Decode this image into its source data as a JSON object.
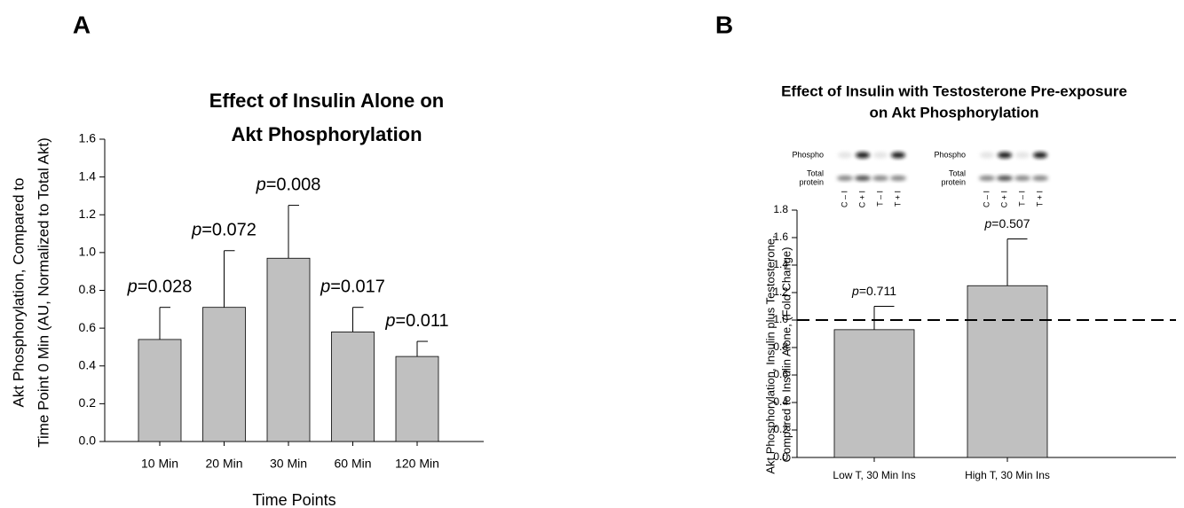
{
  "chart_data": [
    {
      "type": "bar",
      "panel_label": "A",
      "title": [
        "Effect of Insulin Alone on",
        "Akt Phosphorylation"
      ],
      "y_label": [
        "Akt Phosphorylation, Compared to",
        "Time Point 0 Min (AU, Normalized to Total Akt)"
      ],
      "x_label": "Time Points",
      "categories": [
        "10 Min",
        "20 Min",
        "30 Min",
        "60 Min",
        "120 Min"
      ],
      "values": [
        0.54,
        0.71,
        0.97,
        0.58,
        0.45
      ],
      "errors": [
        0.17,
        0.3,
        0.28,
        0.13,
        0.08
      ],
      "annotations": [
        {
          "italic": "p",
          "text": "=0.028"
        },
        {
          "italic": "p",
          "text": "=0.072"
        },
        {
          "italic": "p",
          "text": "=0.008"
        },
        {
          "italic": "p",
          "text": "=0.017"
        },
        {
          "italic": "p",
          "text": "=0.011"
        }
      ],
      "color": "#c0c0c0",
      "ylim": [
        0,
        1.6
      ],
      "yticks": [
        {
          "value": 0,
          "label": "0.0"
        },
        0.2,
        0.4,
        0.6,
        0.8,
        {
          "value": 1,
          "label": "1.0"
        },
        1.2,
        1.4,
        1.6
      ]
    },
    {
      "type": "bar",
      "panel_label": "B",
      "title": [
        "Effect of Insulin with Testosterone Pre-exposure",
        "on Akt Phosphorylation"
      ],
      "y_label": [
        "Akt Phosphorylation, Insulin plus Testosterone,",
        "Compared to Insulin Alone, (Fold Change)"
      ],
      "categories": [
        "Low T, 30 Min Ins",
        "High T, 30 Min Ins"
      ],
      "values": [
        0.93,
        1.25
      ],
      "errors": [
        0.17,
        0.34
      ],
      "annotations": [
        {
          "italic": "p",
          "text": "=0.711"
        },
        {
          "italic": "p",
          "text": "=0.507"
        }
      ],
      "reference_line": 1,
      "color": "#c0c0c0",
      "ylim": [
        0,
        1.8
      ],
      "yticks": [
        {
          "value": 0,
          "label": "0.0"
        },
        0.2,
        0.4,
        0.6,
        0.8,
        {
          "value": 1,
          "label": "1.0"
        },
        1.2,
        1.4,
        1.6,
        1.8
      ],
      "blots": [
        {
          "rows": [
            [
              "Phospho"
            ],
            [
              "Total",
              "protein"
            ]
          ],
          "lanes": [
            "C – I",
            "C + I",
            "T – I",
            "T + I"
          ]
        },
        {
          "rows": [
            [
              "Phospho"
            ],
            [
              "Total",
              "protein"
            ]
          ],
          "lanes": [
            "C – I",
            "C + I",
            "T – I",
            "T + I"
          ]
        }
      ]
    }
  ]
}
